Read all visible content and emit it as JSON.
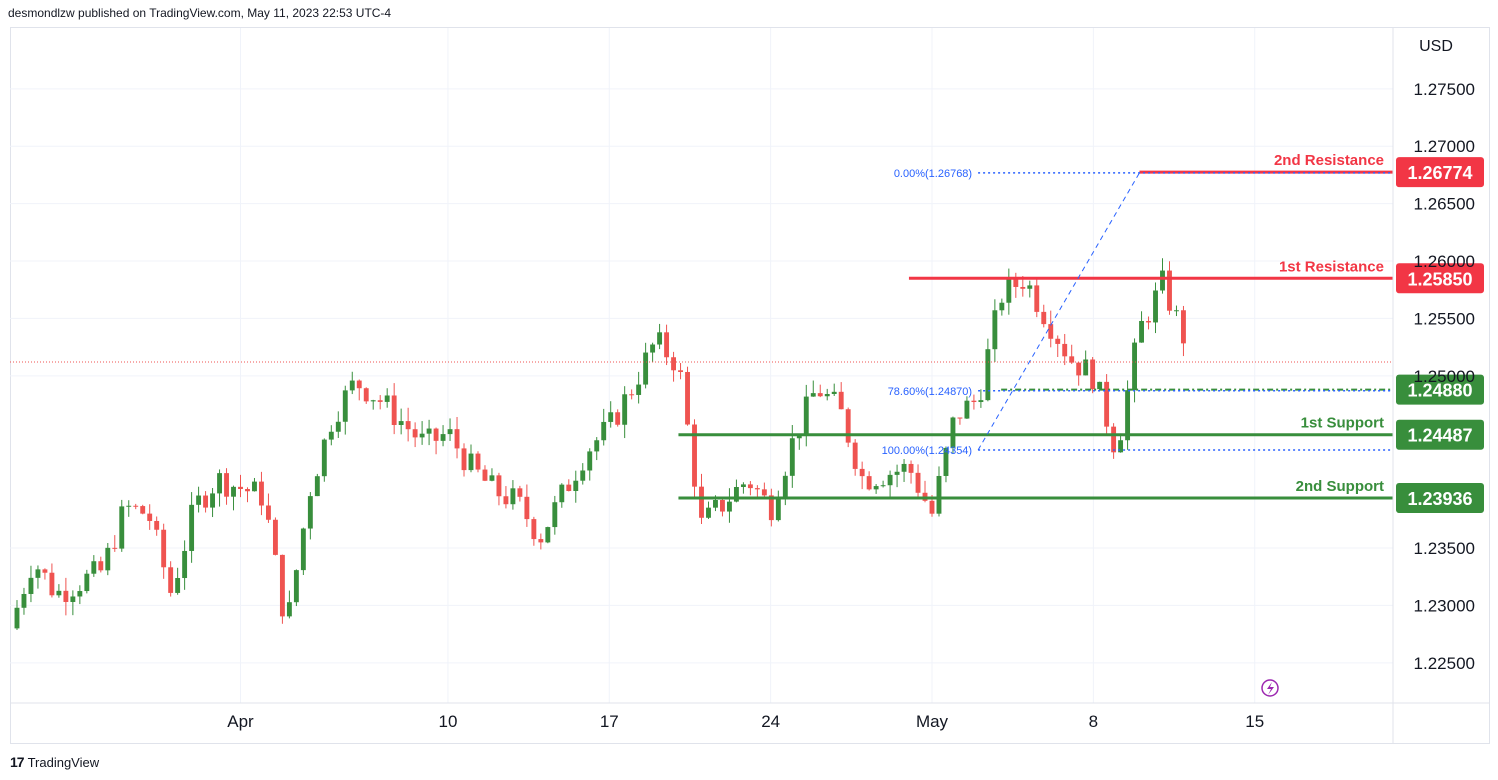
{
  "header": {
    "published_line": "desmondlzw published on TradingView.com, May 11, 2023 22:53 UTC-4"
  },
  "footer": {
    "brand": "TradingView",
    "logo_glyph": "17"
  },
  "colors": {
    "up": "#388e3c",
    "down": "#ef5350",
    "resistance": "#f23645",
    "support": "#388e3c",
    "fib": "#2962ff",
    "grid": "#f0f3fa",
    "text": "#131722",
    "lightning": "#9c27b0"
  },
  "chart_data": {
    "type": "candlestick",
    "currency_label": "USD",
    "y_range": [
      1.2215,
      1.2803
    ],
    "y_ticks": [
      "1.22500",
      "1.23000",
      "1.23500",
      "1.25000",
      "1.25500",
      "1.26000",
      "1.26500",
      "1.27000",
      "1.27500"
    ],
    "y_tick_values": [
      1.225,
      1.23,
      1.235,
      1.25,
      1.255,
      1.26,
      1.265,
      1.27,
      1.275
    ],
    "x_range": [
      "2023-03-22",
      "2023-05-21"
    ],
    "x_ticks": [
      {
        "label": "Apr",
        "date": "2023-04-01"
      },
      {
        "label": "10",
        "date": "2023-04-10"
      },
      {
        "label": "17",
        "date": "2023-04-17"
      },
      {
        "label": "24",
        "date": "2023-04-24"
      },
      {
        "label": "May",
        "date": "2023-05-01"
      },
      {
        "label": "8",
        "date": "2023-05-08"
      },
      {
        "label": "15",
        "date": "2023-05-15"
      }
    ],
    "close_path": [
      {
        "date": "2023-03-22",
        "price": 1.228
      },
      {
        "date": "2023-03-23",
        "price": 1.234
      },
      {
        "date": "2023-03-24",
        "price": 1.231
      },
      {
        "date": "2023-03-26",
        "price": 1.233
      },
      {
        "date": "2023-03-27",
        "price": 1.2385
      },
      {
        "date": "2023-03-28",
        "price": 1.238
      },
      {
        "date": "2023-03-29",
        "price": 1.231
      },
      {
        "date": "2023-03-30",
        "price": 1.2385
      },
      {
        "date": "2023-03-31",
        "price": 1.241
      },
      {
        "date": "2023-04-02",
        "price": 1.2395
      },
      {
        "date": "2023-04-03",
        "price": 1.228
      },
      {
        "date": "2023-04-04",
        "price": 1.24
      },
      {
        "date": "2023-04-05",
        "price": 1.2465
      },
      {
        "date": "2023-04-06",
        "price": 1.2495
      },
      {
        "date": "2023-04-07",
        "price": 1.248
      },
      {
        "date": "2023-04-09",
        "price": 1.244
      },
      {
        "date": "2023-04-10",
        "price": 1.245
      },
      {
        "date": "2023-04-11",
        "price": 1.242
      },
      {
        "date": "2023-04-12",
        "price": 1.24
      },
      {
        "date": "2023-04-13",
        "price": 1.239
      },
      {
        "date": "2023-04-14",
        "price": 1.236
      },
      {
        "date": "2023-04-16",
        "price": 1.2435
      },
      {
        "date": "2023-04-17",
        "price": 1.2455
      },
      {
        "date": "2023-04-18",
        "price": 1.249
      },
      {
        "date": "2023-04-19",
        "price": 1.253
      },
      {
        "date": "2023-04-20",
        "price": 1.251
      },
      {
        "date": "2023-04-21",
        "price": 1.237
      },
      {
        "date": "2023-04-23",
        "price": 1.241
      },
      {
        "date": "2023-04-24",
        "price": 1.2385
      },
      {
        "date": "2023-04-25",
        "price": 1.2445
      },
      {
        "date": "2023-04-26",
        "price": 1.249
      },
      {
        "date": "2023-04-27",
        "price": 1.247
      },
      {
        "date": "2023-04-28",
        "price": 1.241
      },
      {
        "date": "2023-04-30",
        "price": 1.242
      },
      {
        "date": "2023-05-01",
        "price": 1.238
      },
      {
        "date": "2023-05-02",
        "price": 1.2465
      },
      {
        "date": "2023-05-03",
        "price": 1.248
      },
      {
        "date": "2023-05-04",
        "price": 1.257
      },
      {
        "date": "2023-05-05",
        "price": 1.2585
      },
      {
        "date": "2023-05-07",
        "price": 1.2515
      },
      {
        "date": "2023-05-08",
        "price": 1.25
      },
      {
        "date": "2023-05-09",
        "price": 1.2435
      },
      {
        "date": "2023-05-10",
        "price": 1.254
      },
      {
        "date": "2023-05-11",
        "price": 1.258
      },
      {
        "date": "2023-05-12",
        "price": 1.253
      }
    ],
    "candle_settings": {
      "candles_per_day": 3.3,
      "seed": 7
    },
    "current_price": 1.2512,
    "levels": [
      {
        "label": "2nd Resistance",
        "value": 1.26774,
        "value_label": "1.26774",
        "kind": "resistance",
        "start_date": "2023-05-10"
      },
      {
        "label": "1st Resistance",
        "value": 1.2585,
        "value_label": "1.25850",
        "kind": "resistance",
        "start_date": "2023-04-30"
      },
      {
        "label": "",
        "value": 1.2488,
        "value_label": "1.24880",
        "kind": "support-dashed",
        "start_date": "2023-05-04"
      },
      {
        "label": "1st Support",
        "value": 1.24487,
        "value_label": "1.24487",
        "kind": "support",
        "start_date": "2023-04-20"
      },
      {
        "label": "2nd Support",
        "value": 1.23936,
        "value_label": "1.23936",
        "kind": "support",
        "start_date": "2023-04-20"
      }
    ],
    "fibonacci": {
      "trend_from": {
        "date": "2023-05-03",
        "price": 1.24354
      },
      "trend_to": {
        "date": "2023-05-10",
        "price": 1.26768
      },
      "labels": [
        {
          "text": "0.00%(1.26768)",
          "value": 1.26768
        },
        {
          "text": "78.60%(1.24870)",
          "value": 1.2487
        },
        {
          "text": "100.00%(1.24354)",
          "value": 1.24354
        }
      ]
    }
  }
}
